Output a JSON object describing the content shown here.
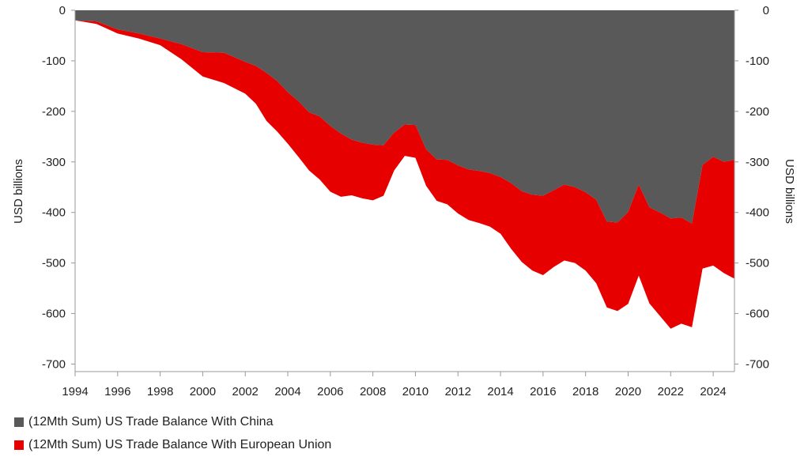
{
  "chart_data": {
    "type": "area",
    "xlim": [
      1994,
      2025
    ],
    "ylim": [
      -700,
      0
    ],
    "x_ticks": [
      "1994",
      "1996",
      "1998",
      "2000",
      "2002",
      "2004",
      "2006",
      "2008",
      "2010",
      "2012",
      "2014",
      "2016",
      "2018",
      "2020",
      "2022",
      "2024"
    ],
    "y_ticks": [
      "0",
      "-100",
      "-200",
      "-300",
      "-400",
      "-500",
      "-600",
      "-700"
    ],
    "ylabel_left": "USD billions",
    "ylabel_right": "USD billions",
    "legend_position": "bottom-left",
    "stacking": "stacked (China plotted from 0, EU stacked below China)",
    "series": [
      {
        "name": "(12Mth Sum) US Trade Balance With China",
        "color": "#595959",
        "x": [
          1994.0,
          1995.0,
          1996.0,
          1997.0,
          1998.0,
          1999.0,
          2000.0,
          2001.0,
          2002.0,
          2002.5,
          2003.0,
          2003.5,
          2004.0,
          2004.5,
          2005.0,
          2005.5,
          2006.0,
          2006.5,
          2007.0,
          2007.5,
          2008.0,
          2008.5,
          2009.0,
          2009.5,
          2010.0,
          2010.5,
          2011.0,
          2011.5,
          2012.0,
          2012.5,
          2013.0,
          2013.5,
          2014.0,
          2014.5,
          2015.0,
          2015.5,
          2016.0,
          2016.5,
          2017.0,
          2017.5,
          2018.0,
          2018.5,
          2019.0,
          2019.5,
          2020.0,
          2020.5,
          2021.0,
          2021.5,
          2022.0,
          2022.5,
          2023.0,
          2023.5,
          2024.0,
          2024.5,
          2025.0
        ],
        "values": [
          -20,
          -22,
          -38,
          -46,
          -56,
          -67,
          -83,
          -84,
          -102,
          -110,
          -124,
          -140,
          -162,
          -180,
          -202,
          -210,
          -229,
          -244,
          -256,
          -262,
          -266,
          -267,
          -242,
          -226,
          -227,
          -275,
          -295,
          -296,
          -307,
          -315,
          -318,
          -322,
          -330,
          -342,
          -358,
          -365,
          -367,
          -356,
          -345,
          -350,
          -360,
          -375,
          -418,
          -420,
          -399,
          -345,
          -390,
          -400,
          -412,
          -410,
          -422,
          -306,
          -290,
          -300,
          -296
        ]
      },
      {
        "name": "(12Mth Sum) US Trade Balance With European Union",
        "color": "#e60000",
        "x": [
          1994.0,
          1995.0,
          1996.0,
          1997.0,
          1998.0,
          1999.0,
          2000.0,
          2001.0,
          2002.0,
          2002.5,
          2003.0,
          2003.5,
          2004.0,
          2004.5,
          2005.0,
          2005.5,
          2006.0,
          2006.5,
          2007.0,
          2007.5,
          2008.0,
          2008.5,
          2009.0,
          2009.5,
          2010.0,
          2010.5,
          2011.0,
          2011.5,
          2012.0,
          2012.5,
          2013.0,
          2013.5,
          2014.0,
          2014.5,
          2015.0,
          2015.5,
          2016.0,
          2016.5,
          2017.0,
          2017.5,
          2018.0,
          2018.5,
          2019.0,
          2019.5,
          2020.0,
          2020.5,
          2021.0,
          2021.5,
          2022.0,
          2022.5,
          2023.0,
          2023.5,
          2024.0,
          2024.5,
          2025.0
        ],
        "values": [
          0,
          -5,
          -8,
          -10,
          -13,
          -30,
          -48,
          -60,
          -63,
          -75,
          -95,
          -100,
          -102,
          -110,
          -115,
          -125,
          -130,
          -125,
          -110,
          -110,
          -110,
          -100,
          -75,
          -62,
          -65,
          -72,
          -82,
          -88,
          -95,
          -100,
          -103,
          -106,
          -112,
          -130,
          -140,
          -150,
          -157,
          -152,
          -150,
          -150,
          -155,
          -165,
          -170,
          -175,
          -182,
          -180,
          -190,
          -205,
          -218,
          -210,
          -205,
          -205,
          -215,
          -220,
          -235
        ]
      }
    ]
  },
  "legend": {
    "china_label": "(12Mth Sum) US Trade Balance With China",
    "eu_label": "(12Mth Sum) US Trade Balance With European Union"
  }
}
